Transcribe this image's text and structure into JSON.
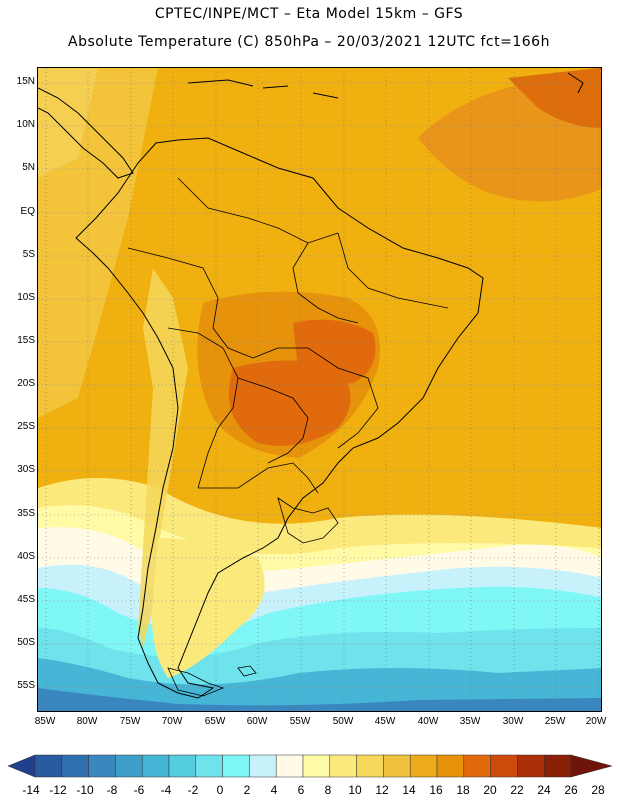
{
  "header": {
    "title_line1": "CPTEC/INPE/MCT –  Eta Model 15km – GFS",
    "title_line2": "Absolute Temperature (C) 850hPa – 20/03/2021 12UTC fct=166h"
  },
  "map": {
    "lat_labels": [
      "15N",
      "10N",
      "5N",
      "EQ",
      "5S",
      "10S",
      "15S",
      "20S",
      "25S",
      "30S",
      "35S",
      "40S",
      "45S",
      "50S",
      "55S"
    ],
    "lon_labels": [
      "85W",
      "80W",
      "75W",
      "70W",
      "65W",
      "60W",
      "55W",
      "50W",
      "45W",
      "40W",
      "35W",
      "30W",
      "25W",
      "20W"
    ],
    "field": "Absolute Temperature (C) 850hPa",
    "ocean_base_color": "#f0b010"
  },
  "colorbar": {
    "labels": [
      "-14",
      "-12",
      "-10",
      "-8",
      "-6",
      "-4",
      "-2",
      "0",
      "2",
      "4",
      "6",
      "8",
      "10",
      "12",
      "14",
      "16",
      "18",
      "20",
      "22",
      "24",
      "26",
      "28"
    ],
    "colors": [
      "#1f3f8f",
      "#2a5aa0",
      "#2f70b0",
      "#3a86bf",
      "#3f9fca",
      "#46b6d6",
      "#55cde0",
      "#6ee3ec",
      "#7ff7f7",
      "#c8f2fb",
      "#fffbe6",
      "#fffaa6",
      "#fbe97c",
      "#f5d75a",
      "#f0c13c",
      "#ecab18",
      "#e6920a",
      "#e16b0c",
      "#cc4a0a",
      "#a93008",
      "#8a2008",
      "#6e1408"
    ]
  }
}
